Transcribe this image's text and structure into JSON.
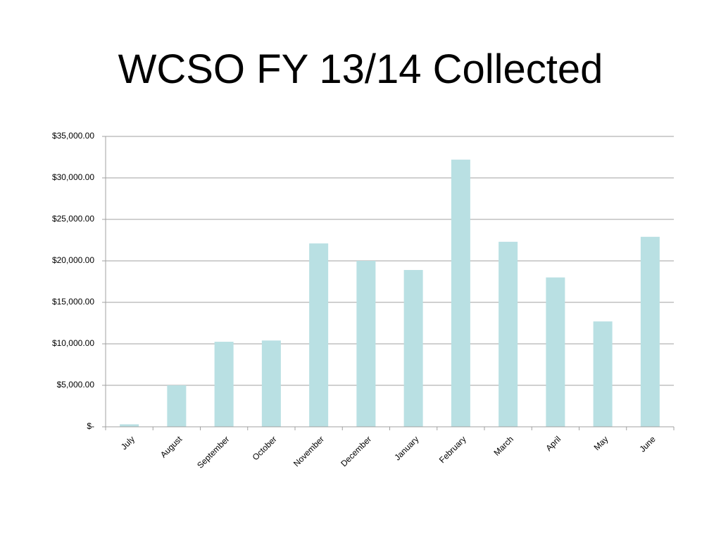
{
  "chart_data": {
    "type": "bar",
    "title": "WCSO FY 13/14 Collected",
    "categories": [
      "July",
      "August",
      "September",
      "October",
      "November",
      "December",
      "January",
      "February",
      "March",
      "April",
      "May",
      "June"
    ],
    "values": [
      300,
      5000,
      10250,
      10400,
      22100,
      20000,
      18900,
      32200,
      22300,
      18000,
      12700,
      22900
    ],
    "color": "#b9e0e3",
    "ylim": [
      0,
      35000
    ],
    "yticks": [
      {
        "value": 0,
        "label": "$-"
      },
      {
        "value": 5000,
        "label": "$5,000.00"
      },
      {
        "value": 10000,
        "label": "$10,000.00"
      },
      {
        "value": 15000,
        "label": "$15,000.00"
      },
      {
        "value": 20000,
        "label": "$20,000.00"
      },
      {
        "value": 25000,
        "label": "$25,000.00"
      },
      {
        "value": 30000,
        "label": "$30,000.00"
      },
      {
        "value": 35000,
        "label": "$35,000.00"
      }
    ],
    "grid": true
  }
}
